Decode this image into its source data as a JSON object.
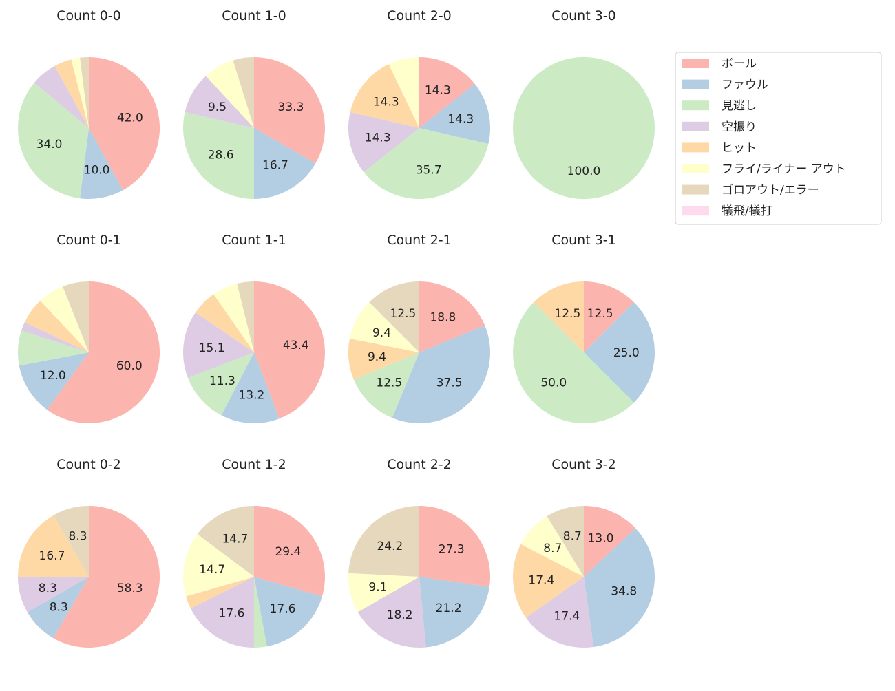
{
  "legend": {
    "labels": [
      "ボール",
      "ファウル",
      "見逃し",
      "空振り",
      "ヒット",
      "フライ/ライナー アウト",
      "ゴロアウト/エラー",
      "犠飛/犠打"
    ],
    "colors": [
      "#fbb4ae",
      "#b3cde3",
      "#ccebc5",
      "#decbe4",
      "#fed9a6",
      "#ffffcc",
      "#e5d8bd",
      "#fddaec"
    ]
  },
  "chart_data": [
    {
      "type": "pie",
      "title": "Count 0-0",
      "values": [
        42.0,
        10.0,
        34.0,
        6,
        4,
        2,
        2,
        0
      ],
      "value_labels": [
        "42.0",
        "10.0",
        "34.0",
        null,
        null,
        null,
        null,
        null
      ]
    },
    {
      "type": "pie",
      "title": "Count 1-0",
      "values": [
        33.3,
        16.7,
        28.6,
        9.5,
        0,
        7.1,
        4.8,
        0
      ],
      "value_labels": [
        "33.3",
        "16.7",
        "28.6",
        "9.5",
        null,
        null,
        null,
        null
      ]
    },
    {
      "type": "pie",
      "title": "Count 2-0",
      "values": [
        14.3,
        14.3,
        35.7,
        14.3,
        14.3,
        7.1,
        0,
        0
      ],
      "value_labels": [
        "14.3",
        "14.3",
        "35.7",
        "14.3",
        "14.3",
        null,
        null,
        null
      ]
    },
    {
      "type": "pie",
      "title": "Count 3-0",
      "values": [
        0,
        0,
        100.0,
        0,
        0,
        0,
        0,
        0
      ],
      "value_labels": [
        null,
        null,
        "100.0",
        null,
        null,
        null,
        null,
        null
      ]
    },
    {
      "type": "pie",
      "title": "Count 0-1",
      "values": [
        60.0,
        12.0,
        8,
        2,
        6,
        6,
        6,
        0
      ],
      "value_labels": [
        "60.0",
        "12.0",
        null,
        null,
        null,
        null,
        null,
        null
      ]
    },
    {
      "type": "pie",
      "title": "Count 1-1",
      "values": [
        43.4,
        13.2,
        11.3,
        15.1,
        5.7,
        5.7,
        3.8,
        0
      ],
      "value_labels": [
        "43.4",
        "13.2",
        "11.3",
        "15.1",
        null,
        null,
        null,
        null
      ]
    },
    {
      "type": "pie",
      "title": "Count 2-1",
      "values": [
        18.8,
        37.5,
        12.5,
        0,
        9.4,
        9.4,
        12.5,
        0
      ],
      "value_labels": [
        "18.8",
        "37.5",
        "12.5",
        null,
        "9.4",
        "9.4",
        "12.5",
        null
      ]
    },
    {
      "type": "pie",
      "title": "Count 3-1",
      "values": [
        12.5,
        25.0,
        50.0,
        0,
        12.5,
        0,
        0,
        0
      ],
      "value_labels": [
        "12.5",
        "25.0",
        "50.0",
        null,
        "12.5",
        null,
        null,
        null
      ]
    },
    {
      "type": "pie",
      "title": "Count 0-2",
      "values": [
        58.3,
        8.3,
        0,
        8.3,
        16.7,
        0,
        8.3,
        0
      ],
      "value_labels": [
        "58.3",
        "8.3",
        null,
        "8.3",
        "16.7",
        null,
        "8.3",
        null
      ]
    },
    {
      "type": "pie",
      "title": "Count 1-2",
      "values": [
        29.4,
        17.6,
        2.9,
        17.6,
        2.9,
        14.7,
        14.7,
        0
      ],
      "value_labels": [
        "29.4",
        "17.6",
        null,
        "17.6",
        null,
        "14.7",
        "14.7",
        null
      ]
    },
    {
      "type": "pie",
      "title": "Count 2-2",
      "values": [
        27.3,
        21.2,
        0,
        18.2,
        0,
        9.1,
        24.2,
        0
      ],
      "value_labels": [
        "27.3",
        "21.2",
        null,
        "18.2",
        null,
        "9.1",
        "24.2",
        null
      ]
    },
    {
      "type": "pie",
      "title": "Count 3-2",
      "values": [
        13.0,
        34.8,
        0,
        17.4,
        17.4,
        8.7,
        8.7,
        0
      ],
      "value_labels": [
        "13.0",
        "34.8",
        null,
        "17.4",
        "17.4",
        "8.7",
        "8.7",
        null
      ]
    }
  ]
}
